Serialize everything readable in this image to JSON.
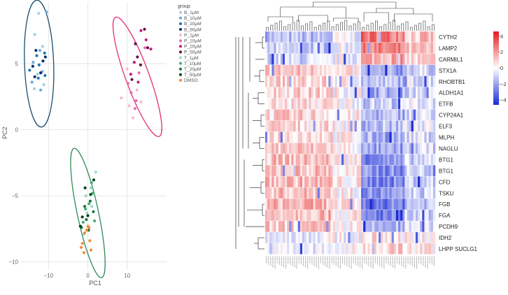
{
  "chart_data": [
    {
      "type": "scatter",
      "xlabel": "PC1",
      "ylabel": "PC2",
      "xlim": [
        -17,
        20
      ],
      "ylim": [
        -10.6,
        9.6
      ],
      "xticks": [
        -10,
        0,
        10
      ],
      "yticks": [
        -10,
        -5,
        0,
        5
      ],
      "grid": true,
      "legend_title": "group",
      "legend_position": "top-right",
      "groups": [
        {
          "name": "B_1μM",
          "color": "#a6cee3"
        },
        {
          "name": "B_10μM",
          "color": "#6fa8d6"
        },
        {
          "name": "B_20μM",
          "color": "#1f78b4"
        },
        {
          "name": "B_50μM",
          "color": "#08306b"
        },
        {
          "name": "P_1μM",
          "color": "#f7b6d2"
        },
        {
          "name": "P_10μM",
          "color": "#e56fb0"
        },
        {
          "name": "P_20μM",
          "color": "#c51b7d"
        },
        {
          "name": "P_50μM",
          "color": "#6a0a4a"
        },
        {
          "name": "T_1μM",
          "color": "#99d8c9"
        },
        {
          "name": "T_10μM",
          "color": "#41ae76"
        },
        {
          "name": "T_20μM",
          "color": "#1b7a3d"
        },
        {
          "name": "T_50μM",
          "color": "#00441b"
        },
        {
          "name": "DMSO",
          "color": "#f58a3a"
        }
      ],
      "points": [
        {
          "g": 0,
          "x": -12.5,
          "y": 8.8
        },
        {
          "g": 0,
          "x": -13.5,
          "y": 7.2
        },
        {
          "g": 0,
          "x": -11.5,
          "y": 6.3
        },
        {
          "g": 0,
          "x": -12.8,
          "y": 4.2
        },
        {
          "g": 0,
          "x": -11.2,
          "y": 3.4
        },
        {
          "g": 0,
          "x": -13.6,
          "y": 3.1
        },
        {
          "g": 1,
          "x": -10.5,
          "y": 8.9
        },
        {
          "g": 1,
          "x": -12.2,
          "y": 6.0
        },
        {
          "g": 1,
          "x": -13.9,
          "y": 5.1
        },
        {
          "g": 1,
          "x": -12.0,
          "y": 3.0
        },
        {
          "g": 1,
          "x": -14.2,
          "y": 3.6
        },
        {
          "g": 1,
          "x": -11.6,
          "y": 4.4
        },
        {
          "g": 2,
          "x": -11.0,
          "y": 5.8
        },
        {
          "g": 2,
          "x": -12.4,
          "y": 4.9
        },
        {
          "g": 2,
          "x": -14.8,
          "y": 4.5
        },
        {
          "g": 2,
          "x": -13.0,
          "y": 5.6
        },
        {
          "g": 2,
          "x": -10.9,
          "y": 4.1
        },
        {
          "g": 2,
          "x": -12.6,
          "y": 3.9
        },
        {
          "g": 3,
          "x": -13.2,
          "y": 6.0
        },
        {
          "g": 3,
          "x": -14.0,
          "y": 4.8
        },
        {
          "g": 3,
          "x": -10.8,
          "y": 5.5
        },
        {
          "g": 3,
          "x": -12.0,
          "y": 4.3
        },
        {
          "g": 3,
          "x": -11.4,
          "y": 5.2
        },
        {
          "g": 3,
          "x": -13.5,
          "y": 4.0
        },
        {
          "g": 4,
          "x": 8.5,
          "y": 2.4
        },
        {
          "g": 4,
          "x": 10.5,
          "y": 1.8
        },
        {
          "g": 4,
          "x": 11.5,
          "y": 0.9
        },
        {
          "g": 4,
          "x": 13.5,
          "y": 2.1
        },
        {
          "g": 4,
          "x": 10.0,
          "y": 4.6
        },
        {
          "g": 4,
          "x": 12.5,
          "y": 3.0
        },
        {
          "g": 5,
          "x": 11.0,
          "y": 2.8
        },
        {
          "g": 5,
          "x": 12.0,
          "y": 1.6
        },
        {
          "g": 5,
          "x": 13.0,
          "y": 4.3
        },
        {
          "g": 5,
          "x": 14.5,
          "y": 6.2
        },
        {
          "g": 5,
          "x": 10.2,
          "y": 3.5
        },
        {
          "g": 5,
          "x": 12.3,
          "y": 2.2
        },
        {
          "g": 6,
          "x": 13.5,
          "y": 7.5
        },
        {
          "g": 6,
          "x": 14.8,
          "y": 6.8
        },
        {
          "g": 6,
          "x": 11.8,
          "y": 5.1
        },
        {
          "g": 6,
          "x": 10.9,
          "y": 4.2
        },
        {
          "g": 6,
          "x": 12.8,
          "y": 3.6
        },
        {
          "g": 6,
          "x": 16.0,
          "y": 6.1
        },
        {
          "g": 7,
          "x": 14.4,
          "y": 7.6
        },
        {
          "g": 7,
          "x": 15.2,
          "y": 6.2
        },
        {
          "g": 7,
          "x": 12.6,
          "y": 5.5
        },
        {
          "g": 7,
          "x": 11.2,
          "y": 3.8
        },
        {
          "g": 7,
          "x": 13.4,
          "y": 4.9
        },
        {
          "g": 7,
          "x": 12.1,
          "y": 6.5
        },
        {
          "g": 8,
          "x": 2.0,
          "y": -3.2
        },
        {
          "g": 8,
          "x": -0.5,
          "y": -5.0
        },
        {
          "g": 8,
          "x": 1.0,
          "y": -5.8
        },
        {
          "g": 8,
          "x": -1.0,
          "y": -7.9
        },
        {
          "g": 8,
          "x": 0.8,
          "y": -4.4
        },
        {
          "g": 8,
          "x": -0.2,
          "y": -6.3
        },
        {
          "g": 9,
          "x": 1.2,
          "y": -4.8
        },
        {
          "g": 9,
          "x": 0.3,
          "y": -5.6
        },
        {
          "g": 9,
          "x": 1.7,
          "y": -6.9
        },
        {
          "g": 9,
          "x": -0.6,
          "y": -6.0
        },
        {
          "g": 9,
          "x": -1.2,
          "y": -7.0
        },
        {
          "g": 9,
          "x": 0.9,
          "y": -4.0
        },
        {
          "g": 10,
          "x": -0.4,
          "y": -6.8
        },
        {
          "g": 10,
          "x": 0.6,
          "y": -5.4
        },
        {
          "g": 10,
          "x": -1.6,
          "y": -7.4
        },
        {
          "g": 10,
          "x": 0.2,
          "y": -7.6
        },
        {
          "g": 10,
          "x": -0.8,
          "y": -5.8
        },
        {
          "g": 10,
          "x": 1.4,
          "y": -6.2
        },
        {
          "g": 11,
          "x": -0.7,
          "y": -4.4
        },
        {
          "g": 11,
          "x": 1.5,
          "y": -3.8
        },
        {
          "g": 11,
          "x": 0.7,
          "y": -4.9
        },
        {
          "g": 11,
          "x": -1.4,
          "y": -6.6
        },
        {
          "g": 11,
          "x": 0.0,
          "y": -6.5
        },
        {
          "g": 11,
          "x": -1.9,
          "y": -7.3
        },
        {
          "g": 12,
          "x": 0.0,
          "y": -7.3
        },
        {
          "g": 12,
          "x": -0.8,
          "y": -7.8
        },
        {
          "g": 12,
          "x": -1.4,
          "y": -8.6
        },
        {
          "g": 12,
          "x": 0.8,
          "y": -9.1
        },
        {
          "g": 12,
          "x": -0.3,
          "y": -7.6
        },
        {
          "g": 12,
          "x": 0.3,
          "y": -7.4
        },
        {
          "g": 12,
          "x": -1.0,
          "y": -9.3
        },
        {
          "g": 12,
          "x": 0.5,
          "y": -8.4
        },
        {
          "g": 12,
          "x": -1.7,
          "y": -8.9
        }
      ],
      "ellipses": [
        {
          "group": "B",
          "cx": -12.4,
          "cy": 5.0,
          "rx": 3.7,
          "ry": 4.8,
          "angle": -2,
          "color": "#1b4f72"
        },
        {
          "group": "P",
          "cx": 12.6,
          "cy": 4.0,
          "rx": 3.0,
          "ry": 4.8,
          "angle": -20,
          "color": "#e0307a"
        },
        {
          "group": "T/DMSO",
          "cx": 0.0,
          "cy": -6.3,
          "rx": 2.7,
          "ry": 5.0,
          "angle": -12,
          "color": "#2e8b57"
        }
      ]
    },
    {
      "type": "heatmap",
      "rows": [
        "CYTH2",
        "LAMP2",
        "CARMIL1",
        "STX1A",
        "RHOBTB1",
        "ALDH1A1",
        "ETFB",
        "CYP24A1",
        "ELF3",
        "MLPH",
        "NAGLU",
        "BTG1",
        "BTG1",
        "CFD",
        "TSKU",
        "FGB",
        "FGA",
        "PCDH9",
        "IDH2",
        "LHPP SUCLG1"
      ],
      "n_columns": 78,
      "colorscale": {
        "low": "#1a2bd6",
        "mid": "#ffffff",
        "high": "#e41a1c"
      },
      "colorbar": {
        "min": -4.6,
        "max": 4.6,
        "ticks": [
          4,
          2,
          0,
          -2,
          -4
        ],
        "tick_labels": [
          "4",
          "2",
          "0",
          "−2",
          "−4"
        ]
      },
      "row_dendrogram": true,
      "column_dendrogram": true,
      "column_labels_shown": true
    }
  ]
}
